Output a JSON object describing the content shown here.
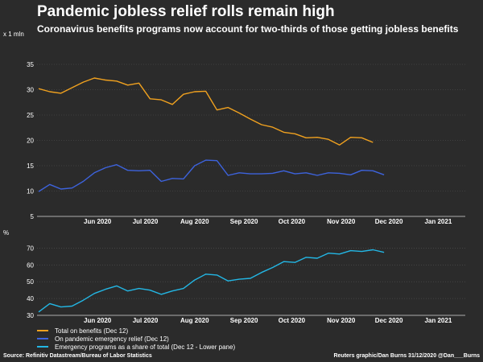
{
  "title": "Pandemic jobless relief rolls remain high",
  "subtitle": "Coronavirus benefits programs now account for two-thirds of those getting jobless benefits",
  "colors": {
    "background": "#2b2b2b",
    "total": "#f0a11f",
    "pandemic": "#3d63dd",
    "share": "#23b7e5",
    "axis": "#d9d9d9",
    "grid": "#555555"
  },
  "chart_data": [
    {
      "type": "line",
      "unit_label": "x 1 mln",
      "ylim": [
        5,
        35
      ],
      "yticks": [
        5,
        10,
        15,
        20,
        25,
        30,
        35
      ],
      "xlim": [
        "2020-05-08",
        "2021-02-01"
      ],
      "xticks": [
        {
          "label": "Jun 2020",
          "date": "2020-06-15"
        },
        {
          "label": "Jul 2020",
          "date": "2020-07-15"
        },
        {
          "label": "Aug 2020",
          "date": "2020-08-15"
        },
        {
          "label": "Sep 2020",
          "date": "2020-09-15"
        },
        {
          "label": "Oct 2020",
          "date": "2020-10-15"
        },
        {
          "label": "Nov 2020",
          "date": "2020-11-15"
        },
        {
          "label": "Dec 2020",
          "date": "2020-12-15"
        },
        {
          "label": "Jan 2021",
          "date": "2021-01-15"
        }
      ],
      "dates": [
        "2020-05-09",
        "2020-05-16",
        "2020-05-23",
        "2020-05-30",
        "2020-06-06",
        "2020-06-13",
        "2020-06-20",
        "2020-06-27",
        "2020-07-04",
        "2020-07-11",
        "2020-07-18",
        "2020-07-25",
        "2020-08-01",
        "2020-08-08",
        "2020-08-15",
        "2020-08-22",
        "2020-08-29",
        "2020-09-05",
        "2020-09-12",
        "2020-09-19",
        "2020-09-26",
        "2020-10-03",
        "2020-10-10",
        "2020-10-17",
        "2020-10-24",
        "2020-10-31",
        "2020-11-07",
        "2020-11-14",
        "2020-11-21",
        "2020-11-28",
        "2020-12-05",
        "2020-12-12"
      ],
      "series": [
        {
          "name": "Total on benefits (Dec 12)",
          "color_key": "total",
          "values": [
            30.2,
            29.6,
            29.3,
            30.4,
            31.5,
            32.3,
            31.9,
            31.7,
            30.9,
            31.3,
            28.2,
            28.0,
            27.1,
            29.1,
            29.6,
            29.7,
            26.0,
            26.5,
            25.4,
            24.2,
            23.1,
            22.6,
            21.6,
            21.3,
            20.5,
            20.6,
            20.2,
            19.1,
            20.6,
            20.5,
            19.6,
            null
          ]
        },
        {
          "name": "On pandemic emergency relief (Dec 12)",
          "color_key": "pandemic",
          "values": [
            9.9,
            11.3,
            10.4,
            10.6,
            11.9,
            13.6,
            14.6,
            15.2,
            14.1,
            14.0,
            14.1,
            11.9,
            12.5,
            12.4,
            15.0,
            16.1,
            16.0,
            13.1,
            13.6,
            13.4,
            13.4,
            13.5,
            14.0,
            13.4,
            13.6,
            13.1,
            13.6,
            13.5,
            13.2,
            14.1,
            14.0,
            13.2
          ]
        }
      ]
    },
    {
      "type": "line",
      "unit_label": "%",
      "ylim": [
        30,
        75
      ],
      "yticks": [
        30,
        40,
        50,
        60,
        70
      ],
      "xlim": [
        "2020-05-08",
        "2021-02-01"
      ],
      "xticks": [
        {
          "label": "Jun 2020",
          "date": "2020-06-15"
        },
        {
          "label": "Jul 2020",
          "date": "2020-07-15"
        },
        {
          "label": "Aug 2020",
          "date": "2020-08-15"
        },
        {
          "label": "Sep 2020",
          "date": "2020-09-15"
        },
        {
          "label": "Oct 2020",
          "date": "2020-10-15"
        },
        {
          "label": "Nov 2020",
          "date": "2020-11-15"
        },
        {
          "label": "Dec 2020",
          "date": "2020-12-15"
        },
        {
          "label": "Jan 2021",
          "date": "2021-01-15"
        }
      ],
      "dates": [
        "2020-05-09",
        "2020-05-16",
        "2020-05-23",
        "2020-05-30",
        "2020-06-06",
        "2020-06-13",
        "2020-06-20",
        "2020-06-27",
        "2020-07-04",
        "2020-07-11",
        "2020-07-18",
        "2020-07-25",
        "2020-08-01",
        "2020-08-08",
        "2020-08-15",
        "2020-08-22",
        "2020-08-29",
        "2020-09-05",
        "2020-09-12",
        "2020-09-19",
        "2020-09-26",
        "2020-10-03",
        "2020-10-10",
        "2020-10-17",
        "2020-10-24",
        "2020-10-31",
        "2020-11-07",
        "2020-11-14",
        "2020-11-21",
        "2020-11-28",
        "2020-12-05",
        "2020-12-12"
      ],
      "series": [
        {
          "name": "Emergency programs as a share of total (Dec 12 - Lower pane)",
          "color_key": "share",
          "values": [
            32,
            37,
            35,
            35.5,
            39,
            43,
            45.5,
            47.5,
            44.5,
            46,
            45,
            42.5,
            44.5,
            46,
            51,
            54.5,
            54,
            50.5,
            51.5,
            52,
            55.5,
            58.5,
            62,
            61.5,
            64.5,
            64,
            67,
            66.5,
            68.5,
            68,
            69,
            67.5
          ]
        }
      ]
    }
  ],
  "legend": [
    {
      "label": "Total on benefits (Dec 12)",
      "color_key": "total"
    },
    {
      "label": "On pandemic emergency relief (Dec 12)",
      "color_key": "pandemic"
    },
    {
      "label": "Emergency programs as a share of total (Dec 12 - Lower pane)",
      "color_key": "share"
    }
  ],
  "footer": {
    "source": "Source: Refinitiv Datastream/Bureau of Labor Statistics",
    "credit": "Reuters graphic/Dan Burns 31/12/2020 @Dan___Burns"
  }
}
